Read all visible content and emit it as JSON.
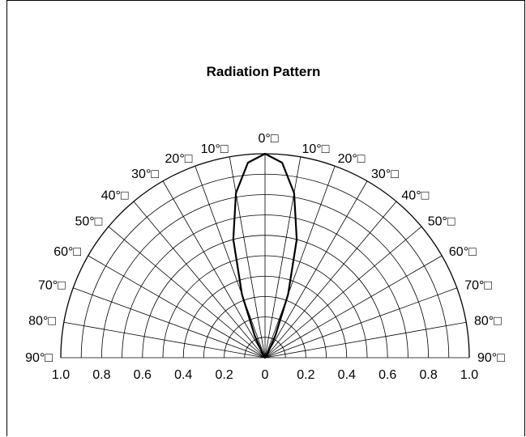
{
  "chart_data": {
    "type": "polar",
    "title": "Radiation Pattern",
    "radial_range": [
      0,
      1.0
    ],
    "radial_ticks": [
      "1.0",
      "0.8",
      "0.6",
      "0.4",
      "0.2",
      "0",
      "0.2",
      "0.4",
      "0.6",
      "0.8",
      "1.0"
    ],
    "angle_labels_left": [
      "90°",
      "80°",
      "70°",
      "60°",
      "50°",
      "40°",
      "30°",
      "20°",
      "10°"
    ],
    "center_angle_label": "0°",
    "angle_labels_right": [
      "10°",
      "20°",
      "30°",
      "40°",
      "50°",
      "60°",
      "70°",
      "80°",
      "90°"
    ],
    "angle_box_glyph": "□",
    "grid": true,
    "series": [
      {
        "values": {
          "angle_deg": [
            -30,
            -25,
            -20,
            -15,
            -10,
            -5,
            0,
            5,
            10,
            15,
            20,
            25,
            30
          ],
          "relative_intensity": [
            0.03,
            0.12,
            0.33,
            0.6,
            0.82,
            0.96,
            1.0,
            0.96,
            0.82,
            0.6,
            0.33,
            0.12,
            0.03
          ]
        }
      }
    ]
  }
}
